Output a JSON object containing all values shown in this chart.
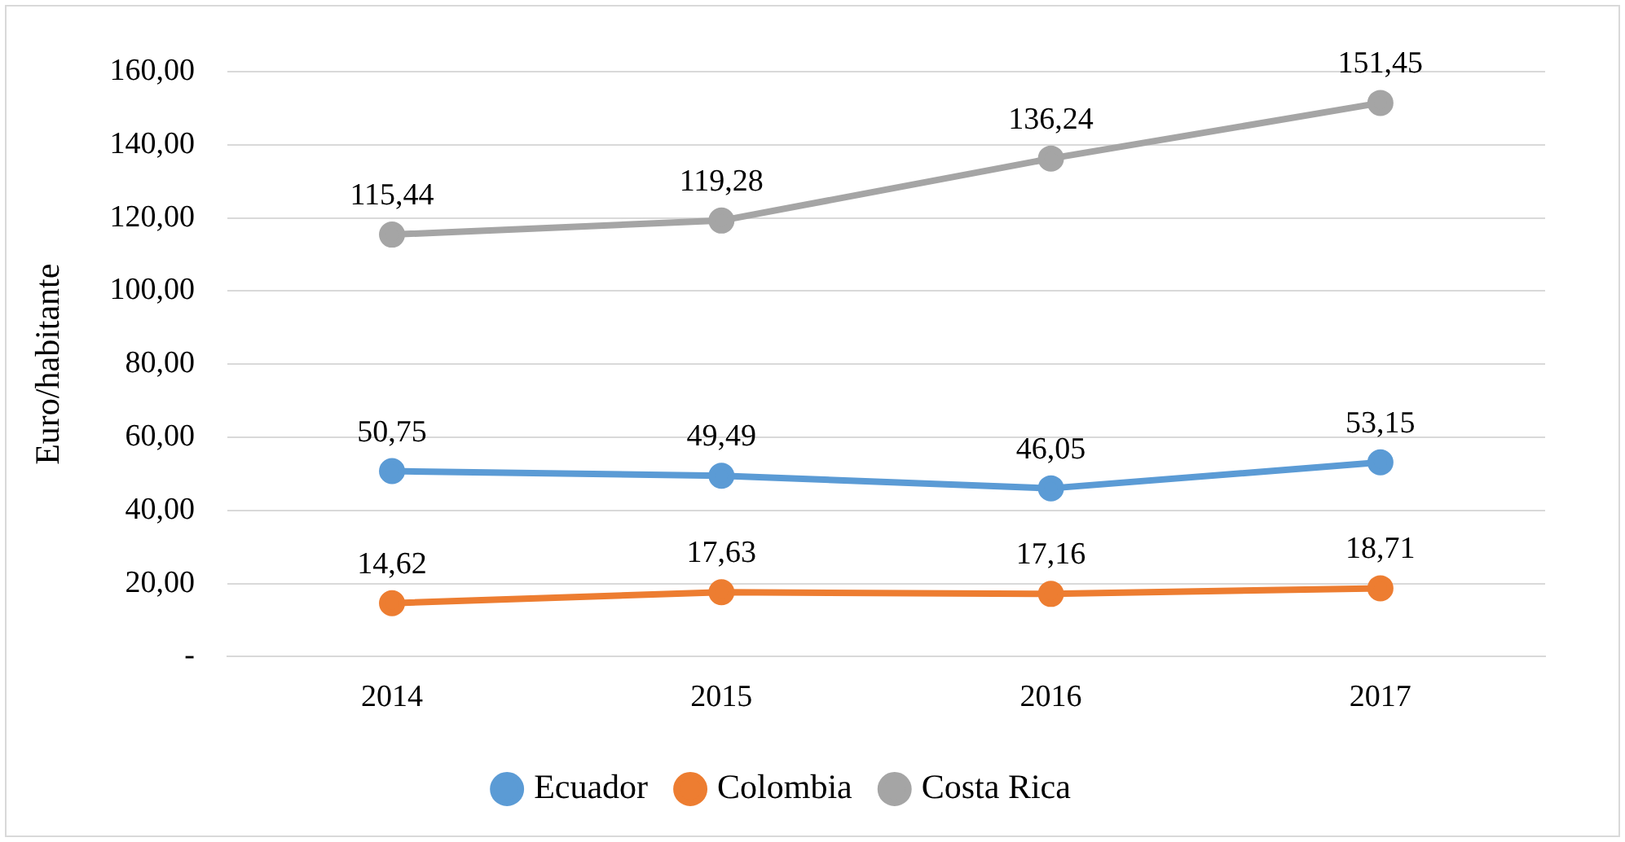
{
  "chart_data": {
    "type": "line",
    "ylabel": "Euro/habitante",
    "categories": [
      "2014",
      "2015",
      "2016",
      "2017"
    ],
    "series": [
      {
        "name": "Ecuador",
        "color": "#5b9bd5",
        "values": [
          50.75,
          49.49,
          46.05,
          53.15
        ],
        "value_labels": [
          "50,75",
          "49,49",
          "46,05",
          "53,15"
        ]
      },
      {
        "name": "Colombia",
        "color": "#ed7d31",
        "values": [
          14.62,
          17.63,
          17.16,
          18.71
        ],
        "value_labels": [
          "14,62",
          "17,63",
          "17,16",
          "18,71"
        ]
      },
      {
        "name": "Costa Rica",
        "color": "#a5a5a5",
        "values": [
          115.44,
          119.28,
          136.24,
          151.45
        ],
        "value_labels": [
          "115,44",
          "119,28",
          "136,24",
          "151,45"
        ]
      }
    ],
    "ylim": [
      0,
      160
    ],
    "yticks": [
      {
        "value": 0,
        "label": "-"
      },
      {
        "value": 20,
        "label": "20,00"
      },
      {
        "value": 40,
        "label": "40,00"
      },
      {
        "value": 60,
        "label": "60,00"
      },
      {
        "value": 80,
        "label": "80,00"
      },
      {
        "value": 100,
        "label": "100,00"
      },
      {
        "value": 120,
        "label": "120,00"
      },
      {
        "value": 140,
        "label": "140,00"
      },
      {
        "value": 160,
        "label": "160,00"
      }
    ],
    "grid": "y",
    "legend": "bottom",
    "marker": "circle",
    "line_style": "solid"
  }
}
